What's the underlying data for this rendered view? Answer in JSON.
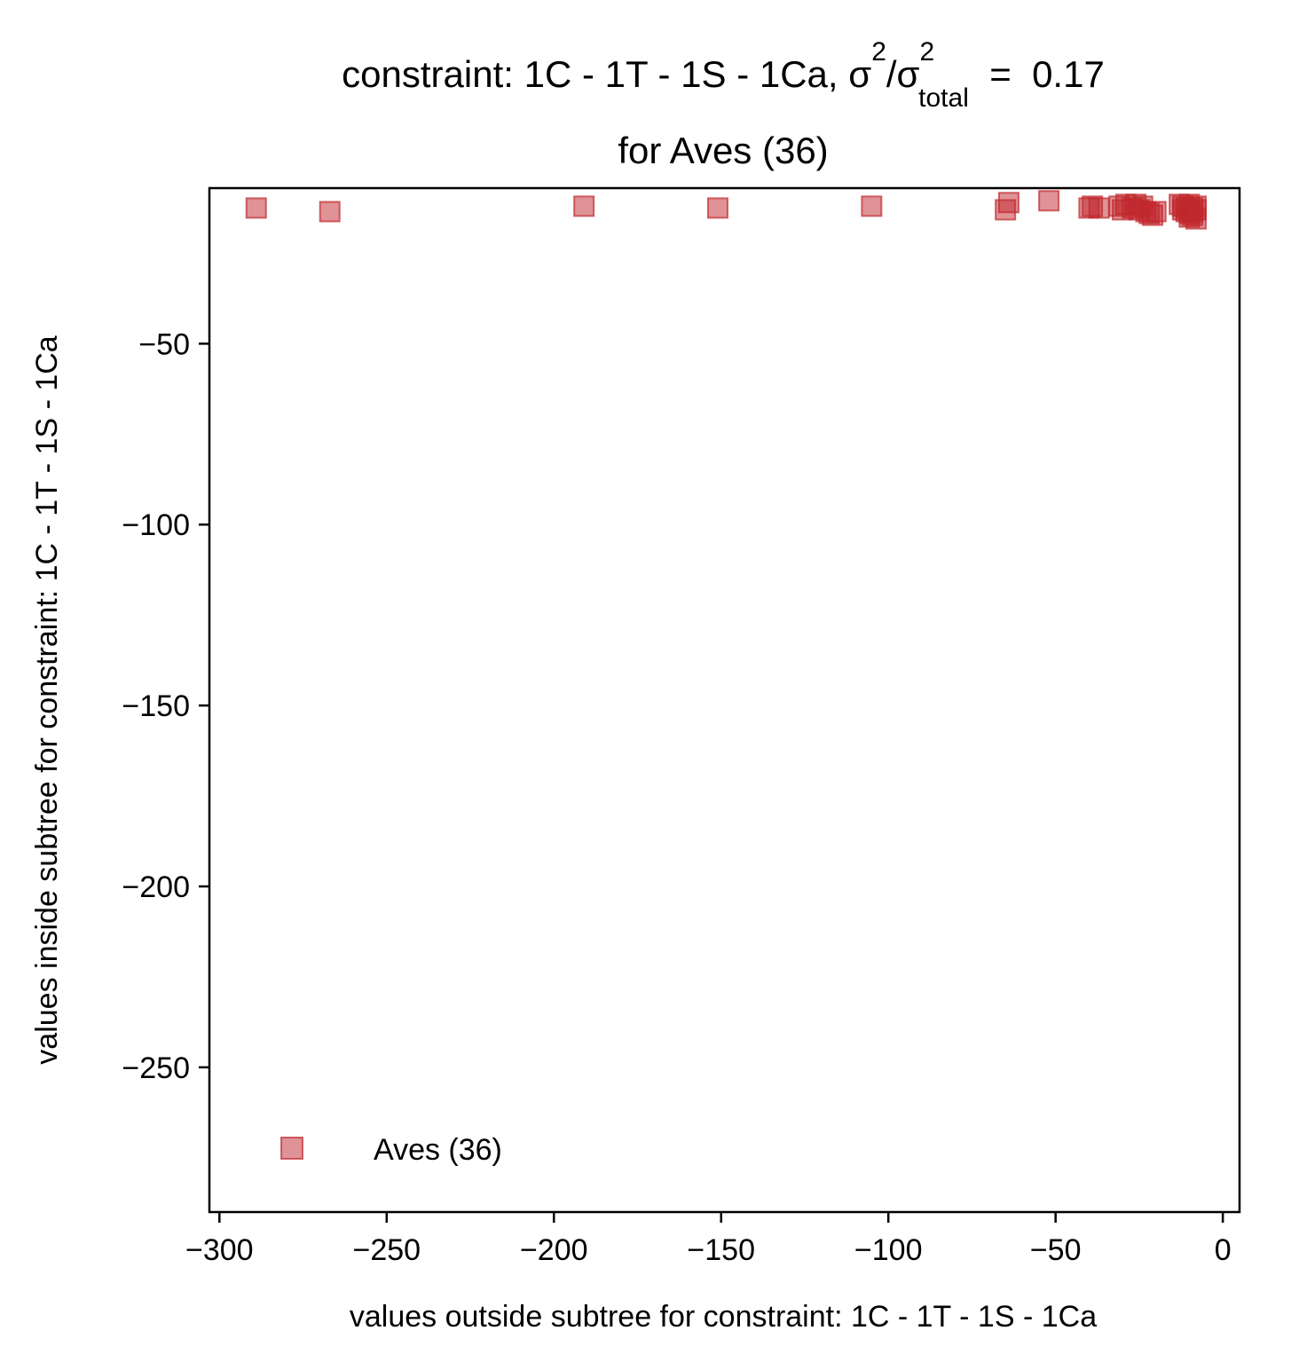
{
  "chart_data": {
    "type": "scatter",
    "title": {
      "line1_main": "constraint: 1C - 1T - 1S - 1Ca, σ",
      "line1_sup1": "2",
      "line1_mid": "/σ",
      "line1_sup2": "2",
      "line1_sub": "total",
      "line1_end": "  =  0.17",
      "line2": "for Aves (36)"
    },
    "xlabel": "values outside subtree for constraint: 1C - 1T - 1S - 1Ca",
    "ylabel": "values inside subtree for constraint: 1C - 1T - 1S - 1Ca",
    "xlim": [
      -303,
      5
    ],
    "ylim": [
      -290,
      -7
    ],
    "xticks": [
      {
        "value": -300,
        "label": "−300"
      },
      {
        "value": -250,
        "label": "−250"
      },
      {
        "value": -200,
        "label": "−200"
      },
      {
        "value": -150,
        "label": "−150"
      },
      {
        "value": -100,
        "label": "−100"
      },
      {
        "value": -50,
        "label": "−50"
      },
      {
        "value": 0,
        "label": "0"
      }
    ],
    "yticks": [
      {
        "value": -50,
        "label": "−50"
      },
      {
        "value": -100,
        "label": "−100"
      },
      {
        "value": -150,
        "label": "−150"
      },
      {
        "value": -200,
        "label": "−200"
      },
      {
        "value": -250,
        "label": "−250"
      }
    ],
    "grid": false,
    "legend": {
      "position": "bottom-left",
      "entries": [
        "Aves (36)"
      ]
    },
    "series": [
      {
        "name": "Aves (36)",
        "color": "#c0282d",
        "marker": "square",
        "points": [
          [
            -289,
            -12.5
          ],
          [
            -267,
            -13.5
          ],
          [
            -191,
            -12
          ],
          [
            -151,
            -12.5
          ],
          [
            -105,
            -12
          ],
          [
            -65,
            -13
          ],
          [
            -64,
            -11
          ],
          [
            -52,
            -10.5
          ],
          [
            -40,
            -12.5
          ],
          [
            -39,
            -12
          ],
          [
            -37,
            -12.5
          ],
          [
            -31,
            -12
          ],
          [
            -30,
            -13
          ],
          [
            -29,
            -11.5
          ],
          [
            -27,
            -12.5
          ],
          [
            -26,
            -11.5
          ],
          [
            -25,
            -13
          ],
          [
            -24,
            -12
          ],
          [
            -23,
            -13.5
          ],
          [
            -22,
            -14
          ],
          [
            -21,
            -14.5
          ],
          [
            -20,
            -13.5
          ],
          [
            -13,
            -11.5
          ],
          [
            -12,
            -12
          ],
          [
            -12,
            -13
          ],
          [
            -11,
            -12.5
          ],
          [
            -11,
            -13.5
          ],
          [
            -10,
            -14
          ],
          [
            -10,
            -15
          ],
          [
            -10,
            -11.5
          ],
          [
            -9,
            -12.5
          ],
          [
            -9,
            -13.5
          ],
          [
            -9,
            -14.5
          ],
          [
            -8,
            -12
          ],
          [
            -8,
            -13
          ],
          [
            -8,
            -15.5
          ]
        ]
      }
    ]
  }
}
